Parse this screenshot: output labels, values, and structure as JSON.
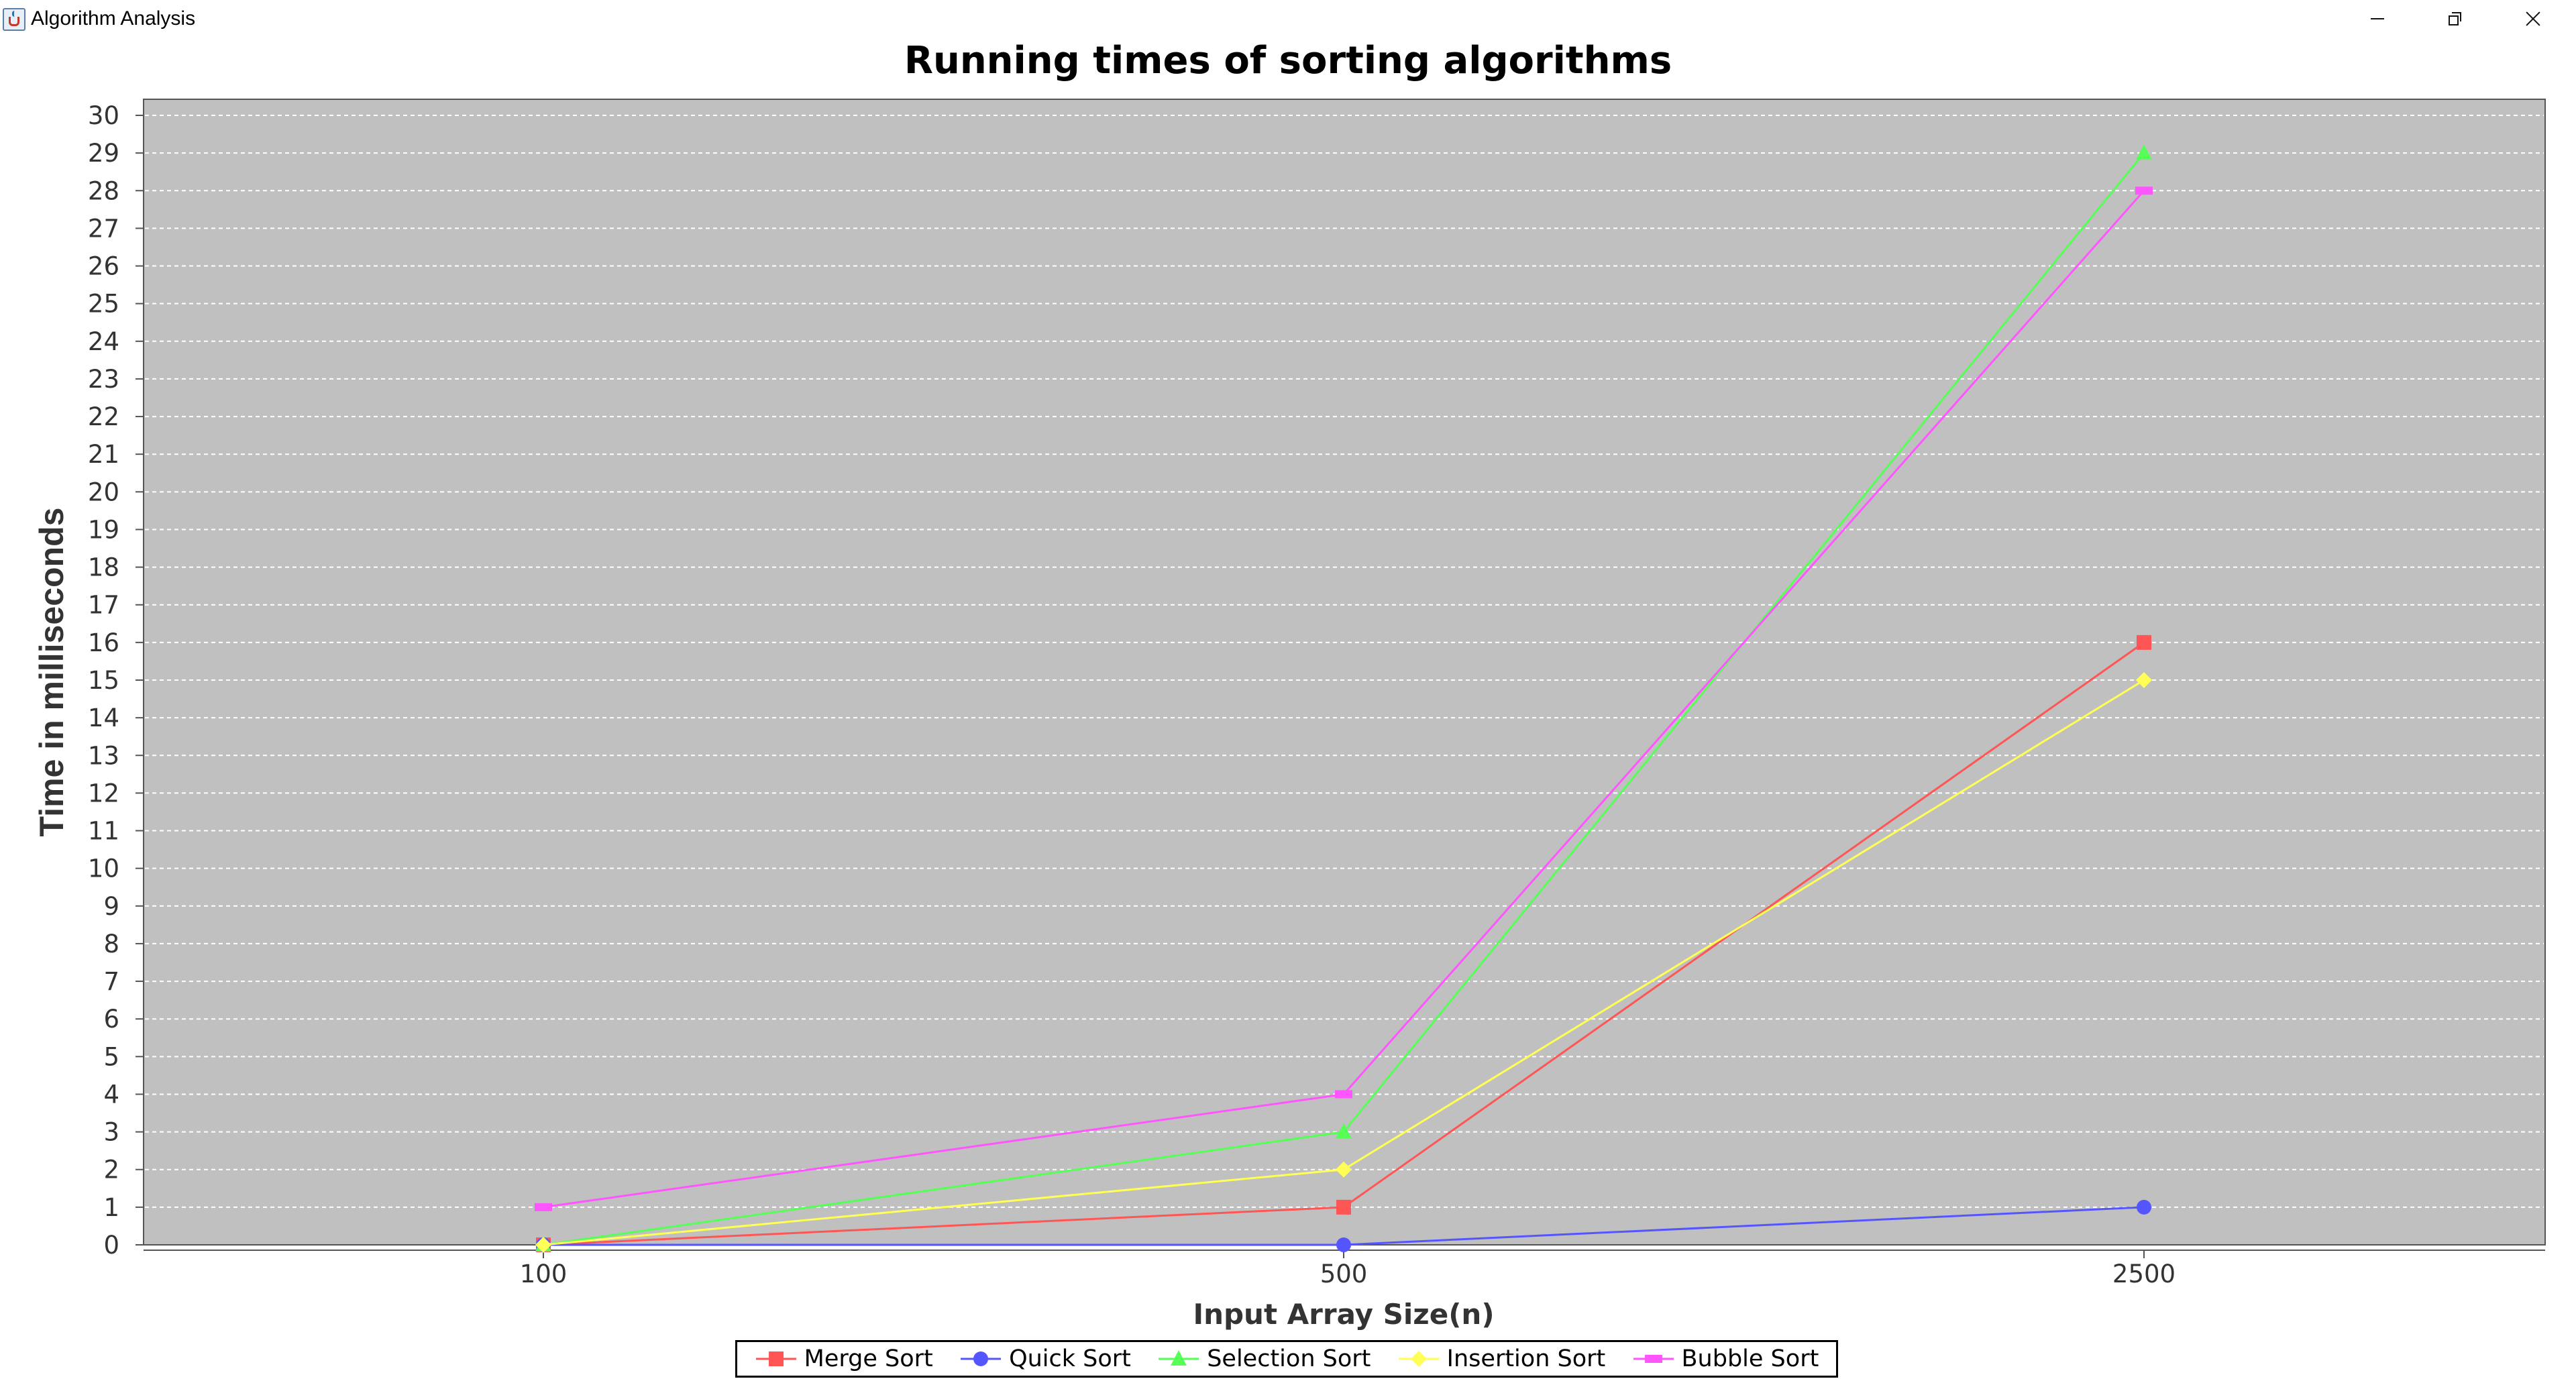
{
  "window": {
    "title": "Algorithm Analysis",
    "icon": "java-app-icon"
  },
  "chart_data": {
    "type": "line",
    "title": "Running times of sorting algorithms",
    "xlabel": "Input Array Size(n)",
    "ylabel": "Time in milliseconds",
    "categories": [
      "100",
      "500",
      "2500"
    ],
    "ylim": [
      0,
      30
    ],
    "yticks": [
      0,
      1,
      2,
      3,
      4,
      5,
      6,
      7,
      8,
      9,
      10,
      11,
      12,
      13,
      14,
      15,
      16,
      17,
      18,
      19,
      20,
      21,
      22,
      23,
      24,
      25,
      26,
      27,
      28,
      29,
      30
    ],
    "grid": true,
    "plot_background": "#c0c0c0",
    "legend_position": "bottom",
    "series": [
      {
        "name": "Merge Sort",
        "color": "#ff5555",
        "marker": "square",
        "values": [
          0,
          1,
          16
        ]
      },
      {
        "name": "Quick Sort",
        "color": "#5555ff",
        "marker": "circle",
        "values": [
          0,
          0,
          1
        ]
      },
      {
        "name": "Selection Sort",
        "color": "#55ff55",
        "marker": "triangle",
        "values": [
          0,
          3,
          29
        ]
      },
      {
        "name": "Insertion Sort",
        "color": "#ffff55",
        "marker": "diamond",
        "values": [
          0,
          2,
          15
        ]
      },
      {
        "name": "Bubble Sort",
        "color": "#ff55ff",
        "marker": "rect",
        "values": [
          1,
          4,
          28
        ]
      }
    ]
  }
}
